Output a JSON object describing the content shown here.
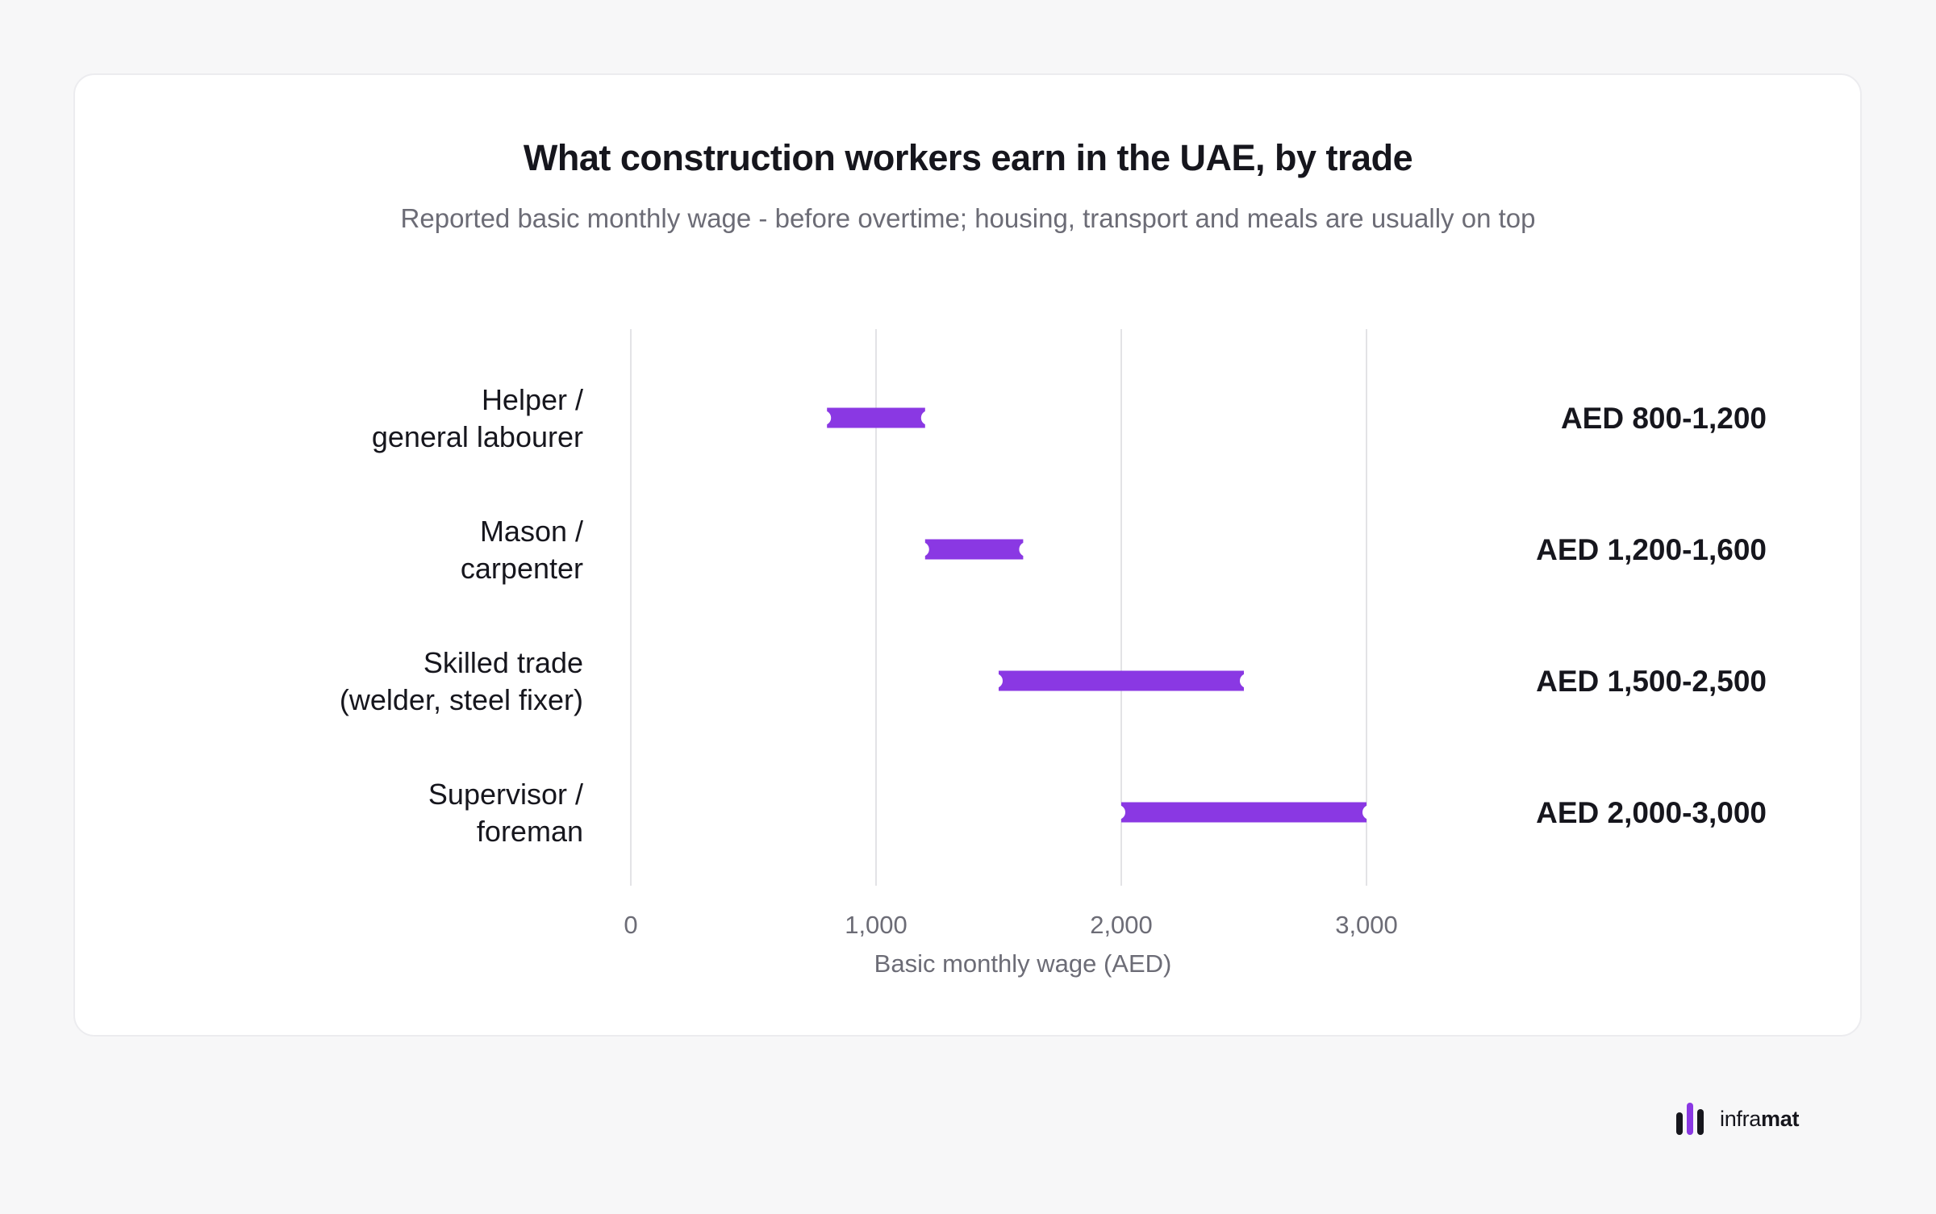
{
  "colors": {
    "bar": "#8a38e3",
    "grid": "#e3e3e6",
    "text": "#16161d",
    "muted": "#6c6c76",
    "brand_dark": "#16161d",
    "brand_accent": "#8a38e3"
  },
  "brand": {
    "name_light": "infra",
    "name_bold": "mat"
  },
  "chart_data": {
    "type": "range-bar",
    "title": "What construction workers earn in the UAE, by trade",
    "subtitle": "Reported basic monthly wage - before overtime; housing, transport and meals are usually on top",
    "xlabel": "Basic monthly wage (AED)",
    "xlim": [
      0,
      3000
    ],
    "xticks": [
      0,
      1000,
      2000,
      3000
    ],
    "xtick_labels": [
      "0",
      "1,000",
      "2,000",
      "3,000"
    ],
    "grid": true,
    "categories": [
      {
        "label_lines": [
          "Helper /",
          "general labourer"
        ],
        "low": 800,
        "high": 1200,
        "range_label": "AED 800-1,200"
      },
      {
        "label_lines": [
          "Mason /",
          "carpenter"
        ],
        "low": 1200,
        "high": 1600,
        "range_label": "AED 1,200-1,600"
      },
      {
        "label_lines": [
          "Skilled trade",
          "(welder, steel fixer)"
        ],
        "low": 1500,
        "high": 2500,
        "range_label": "AED 1,500-2,500"
      },
      {
        "label_lines": [
          "Supervisor /",
          "foreman"
        ],
        "low": 2000,
        "high": 3000,
        "range_label": "AED 2,000-3,000"
      }
    ]
  }
}
